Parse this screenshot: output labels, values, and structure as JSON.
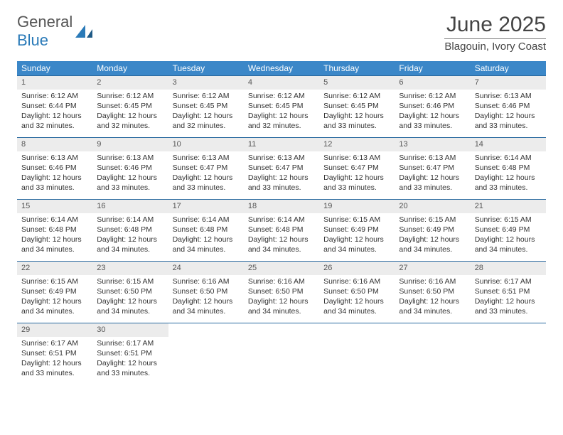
{
  "logo": {
    "word1": "General",
    "word2": "Blue"
  },
  "title": "June 2025",
  "location": "Blagouin, Ivory Coast",
  "colors": {
    "header_bg": "#3b87c8",
    "header_text": "#ffffff",
    "daynum_bg": "#ececec",
    "border": "#2a6aa0",
    "text": "#333333",
    "logo_blue": "#2a7ab8"
  },
  "day_names": [
    "Sunday",
    "Monday",
    "Tuesday",
    "Wednesday",
    "Thursday",
    "Friday",
    "Saturday"
  ],
  "weeks": [
    [
      {
        "n": "1",
        "sr": "6:12 AM",
        "ss": "6:44 PM",
        "dl": "12 hours and 32 minutes."
      },
      {
        "n": "2",
        "sr": "6:12 AM",
        "ss": "6:45 PM",
        "dl": "12 hours and 32 minutes."
      },
      {
        "n": "3",
        "sr": "6:12 AM",
        "ss": "6:45 PM",
        "dl": "12 hours and 32 minutes."
      },
      {
        "n": "4",
        "sr": "6:12 AM",
        "ss": "6:45 PM",
        "dl": "12 hours and 32 minutes."
      },
      {
        "n": "5",
        "sr": "6:12 AM",
        "ss": "6:45 PM",
        "dl": "12 hours and 33 minutes."
      },
      {
        "n": "6",
        "sr": "6:12 AM",
        "ss": "6:46 PM",
        "dl": "12 hours and 33 minutes."
      },
      {
        "n": "7",
        "sr": "6:13 AM",
        "ss": "6:46 PM",
        "dl": "12 hours and 33 minutes."
      }
    ],
    [
      {
        "n": "8",
        "sr": "6:13 AM",
        "ss": "6:46 PM",
        "dl": "12 hours and 33 minutes."
      },
      {
        "n": "9",
        "sr": "6:13 AM",
        "ss": "6:46 PM",
        "dl": "12 hours and 33 minutes."
      },
      {
        "n": "10",
        "sr": "6:13 AM",
        "ss": "6:47 PM",
        "dl": "12 hours and 33 minutes."
      },
      {
        "n": "11",
        "sr": "6:13 AM",
        "ss": "6:47 PM",
        "dl": "12 hours and 33 minutes."
      },
      {
        "n": "12",
        "sr": "6:13 AM",
        "ss": "6:47 PM",
        "dl": "12 hours and 33 minutes."
      },
      {
        "n": "13",
        "sr": "6:13 AM",
        "ss": "6:47 PM",
        "dl": "12 hours and 33 minutes."
      },
      {
        "n": "14",
        "sr": "6:14 AM",
        "ss": "6:48 PM",
        "dl": "12 hours and 33 minutes."
      }
    ],
    [
      {
        "n": "15",
        "sr": "6:14 AM",
        "ss": "6:48 PM",
        "dl": "12 hours and 34 minutes."
      },
      {
        "n": "16",
        "sr": "6:14 AM",
        "ss": "6:48 PM",
        "dl": "12 hours and 34 minutes."
      },
      {
        "n": "17",
        "sr": "6:14 AM",
        "ss": "6:48 PM",
        "dl": "12 hours and 34 minutes."
      },
      {
        "n": "18",
        "sr": "6:14 AM",
        "ss": "6:48 PM",
        "dl": "12 hours and 34 minutes."
      },
      {
        "n": "19",
        "sr": "6:15 AM",
        "ss": "6:49 PM",
        "dl": "12 hours and 34 minutes."
      },
      {
        "n": "20",
        "sr": "6:15 AM",
        "ss": "6:49 PM",
        "dl": "12 hours and 34 minutes."
      },
      {
        "n": "21",
        "sr": "6:15 AM",
        "ss": "6:49 PM",
        "dl": "12 hours and 34 minutes."
      }
    ],
    [
      {
        "n": "22",
        "sr": "6:15 AM",
        "ss": "6:49 PM",
        "dl": "12 hours and 34 minutes."
      },
      {
        "n": "23",
        "sr": "6:15 AM",
        "ss": "6:50 PM",
        "dl": "12 hours and 34 minutes."
      },
      {
        "n": "24",
        "sr": "6:16 AM",
        "ss": "6:50 PM",
        "dl": "12 hours and 34 minutes."
      },
      {
        "n": "25",
        "sr": "6:16 AM",
        "ss": "6:50 PM",
        "dl": "12 hours and 34 minutes."
      },
      {
        "n": "26",
        "sr": "6:16 AM",
        "ss": "6:50 PM",
        "dl": "12 hours and 34 minutes."
      },
      {
        "n": "27",
        "sr": "6:16 AM",
        "ss": "6:50 PM",
        "dl": "12 hours and 34 minutes."
      },
      {
        "n": "28",
        "sr": "6:17 AM",
        "ss": "6:51 PM",
        "dl": "12 hours and 33 minutes."
      }
    ],
    [
      {
        "n": "29",
        "sr": "6:17 AM",
        "ss": "6:51 PM",
        "dl": "12 hours and 33 minutes."
      },
      {
        "n": "30",
        "sr": "6:17 AM",
        "ss": "6:51 PM",
        "dl": "12 hours and 33 minutes."
      },
      null,
      null,
      null,
      null,
      null
    ]
  ],
  "labels": {
    "sunrise": "Sunrise: ",
    "sunset": "Sunset: ",
    "daylight": "Daylight: "
  }
}
